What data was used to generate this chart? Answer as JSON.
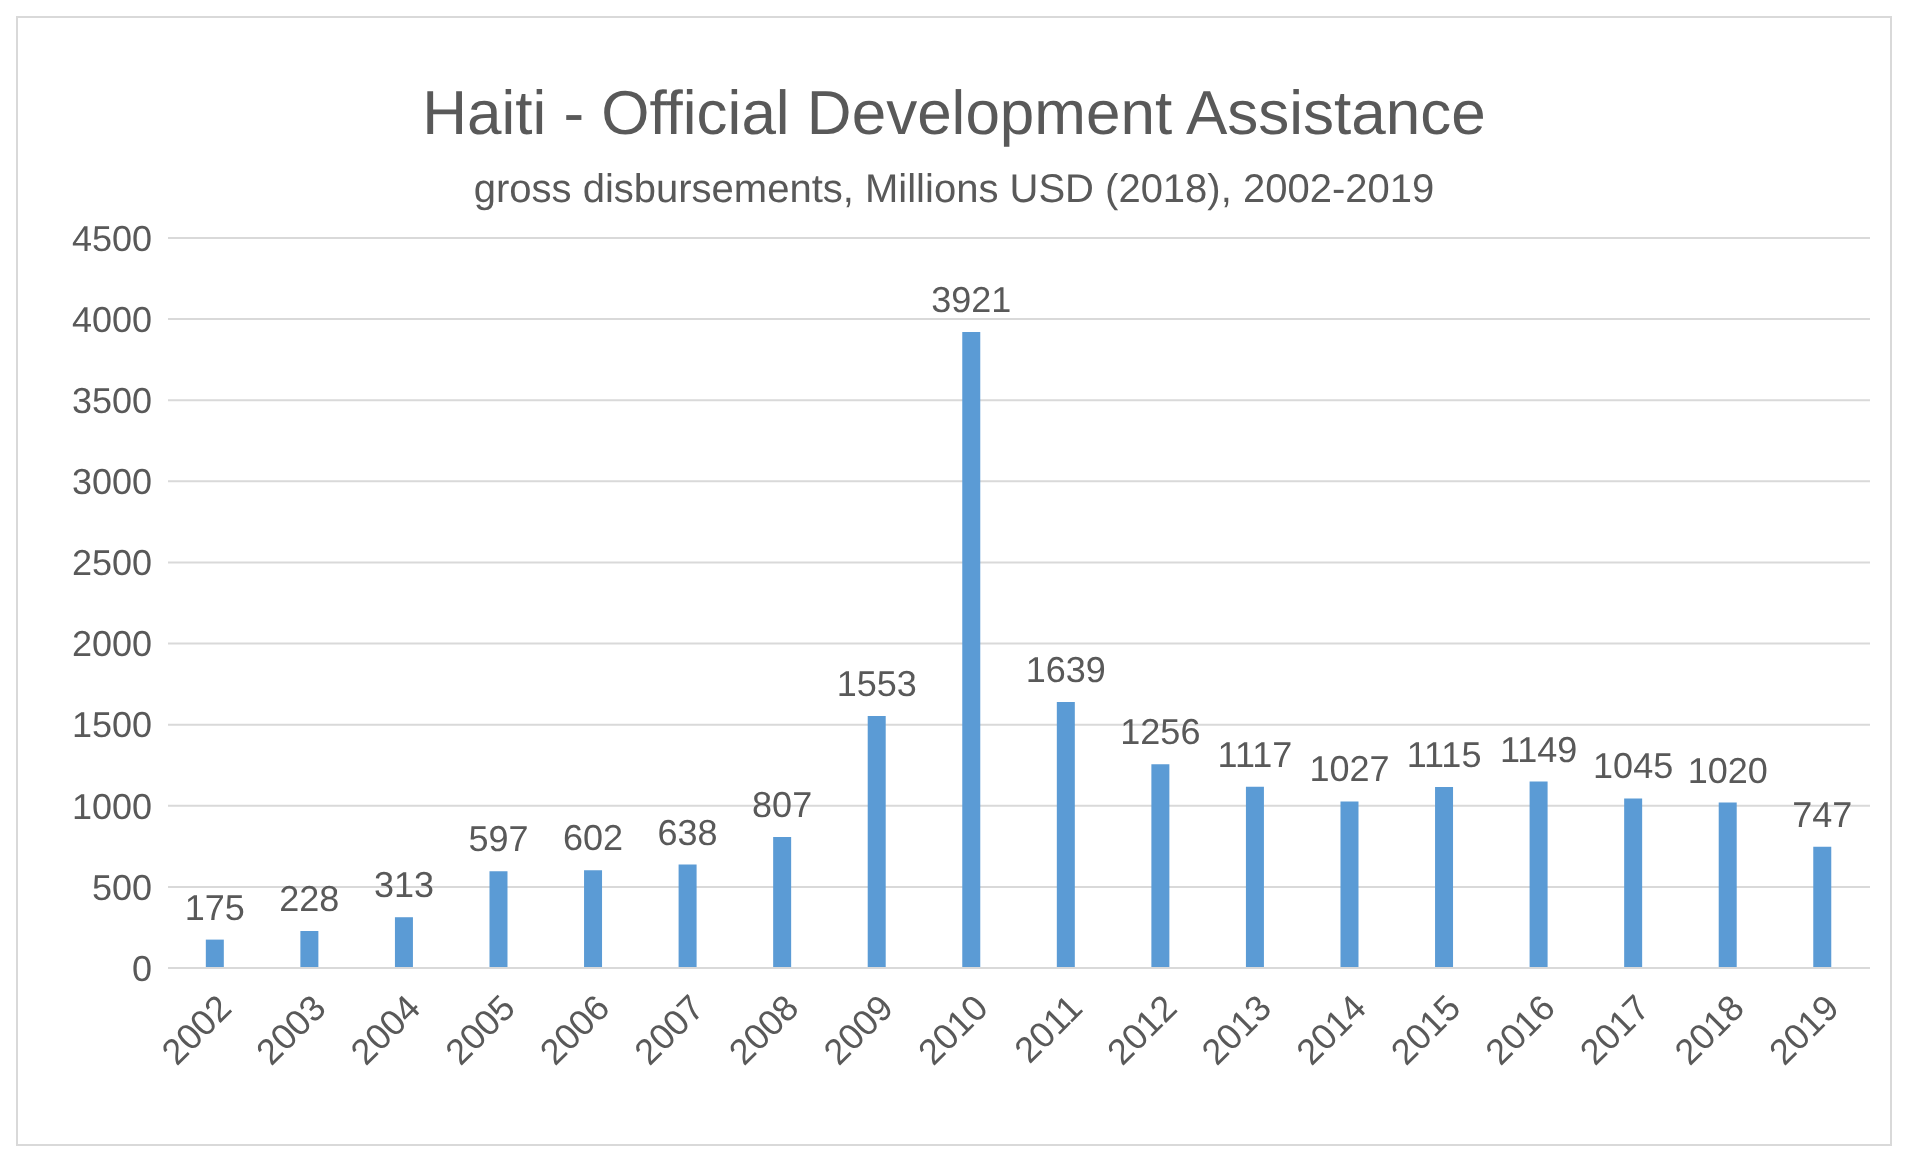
{
  "chart_data": {
    "type": "bar",
    "title": "Haiti - Official Development Assistance",
    "subtitle": "gross disbursements, Millions USD (2018), 2002-2019",
    "categories": [
      "2002",
      "2003",
      "2004",
      "2005",
      "2006",
      "2007",
      "2008",
      "2009",
      "2010",
      "2011",
      "2012",
      "2013",
      "2014",
      "2015",
      "2016",
      "2017",
      "2018",
      "2019"
    ],
    "values": [
      175,
      228,
      313,
      597,
      602,
      638,
      807,
      1553,
      3921,
      1639,
      1256,
      1117,
      1027,
      1115,
      1149,
      1045,
      1020,
      747
    ],
    "color": "#5b9bd5",
    "ylim": [
      0,
      4500
    ],
    "yticks": [
      0,
      500,
      1000,
      1500,
      2000,
      2500,
      3000,
      3500,
      4000,
      4500
    ],
    "grid": "y",
    "data_labels": true
  }
}
